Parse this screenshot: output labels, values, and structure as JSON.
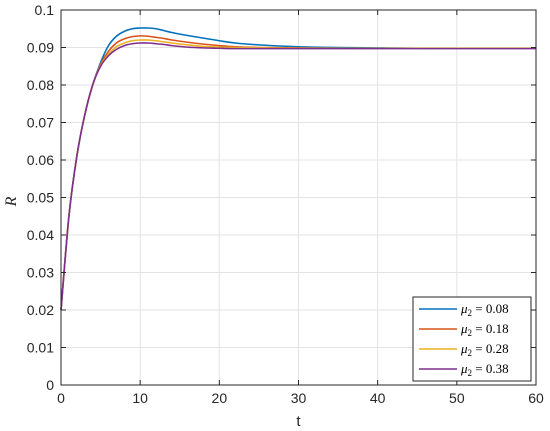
{
  "chart_data": {
    "type": "line",
    "title": "",
    "xlabel": "t",
    "ylabel": "R",
    "xlim": [
      0,
      60
    ],
    "ylim": [
      0,
      0.1
    ],
    "xticks": [
      "0",
      "10",
      "20",
      "30",
      "40",
      "50",
      "60"
    ],
    "yticks": [
      "0",
      "0.01",
      "0.02",
      "0.03",
      "0.04",
      "0.05",
      "0.06",
      "0.07",
      "0.08",
      "0.09",
      "0.1"
    ],
    "grid": true,
    "legend_position": "bottom-right",
    "x": [
      0,
      1,
      2,
      3,
      4,
      5,
      6,
      7,
      8,
      9,
      10,
      11,
      12,
      13,
      14,
      16,
      18,
      20,
      22,
      25,
      30,
      35,
      40,
      45,
      50,
      55,
      60
    ],
    "series": [
      {
        "name": "μ2 = 0.08",
        "legend_name": "μ",
        "legend_sub": "2",
        "legend_value": " = 0.08",
        "color": "#0072BD",
        "values": [
          0.02,
          0.045,
          0.061,
          0.072,
          0.08,
          0.086,
          0.0905,
          0.093,
          0.0943,
          0.095,
          0.0952,
          0.0952,
          0.095,
          0.0945,
          0.094,
          0.0932,
          0.0925,
          0.0918,
          0.0912,
          0.0907,
          0.0902,
          0.09,
          0.0899,
          0.0898,
          0.0898,
          0.0898,
          0.0898
        ]
      },
      {
        "name": "μ2 = 0.18",
        "legend_name": "μ",
        "legend_sub": "2",
        "legend_value": " = 0.18",
        "color": "#D95319",
        "values": [
          0.02,
          0.045,
          0.061,
          0.072,
          0.08,
          0.0855,
          0.089,
          0.0912,
          0.0923,
          0.0929,
          0.0931,
          0.093,
          0.0927,
          0.0924,
          0.092,
          0.0914,
          0.0909,
          0.0905,
          0.0902,
          0.09,
          0.0899,
          0.0898,
          0.0898,
          0.0898,
          0.0898,
          0.0898,
          0.0898
        ]
      },
      {
        "name": "μ2 = 0.28",
        "legend_name": "μ",
        "legend_sub": "2",
        "legend_value": " = 0.28",
        "color": "#EDB120",
        "values": [
          0.02,
          0.045,
          0.061,
          0.072,
          0.08,
          0.0852,
          0.0882,
          0.0902,
          0.0912,
          0.0918,
          0.092,
          0.092,
          0.0918,
          0.0915,
          0.0912,
          0.0907,
          0.0903,
          0.0901,
          0.09,
          0.0899,
          0.0898,
          0.0898,
          0.0898,
          0.0898,
          0.0898,
          0.0898,
          0.0898
        ]
      },
      {
        "name": "μ2 = 0.38",
        "legend_name": "μ",
        "legend_sub": "2",
        "legend_value": " = 0.38",
        "color": "#7E2F8E",
        "values": [
          0.02,
          0.045,
          0.061,
          0.072,
          0.08,
          0.085,
          0.0878,
          0.0895,
          0.0905,
          0.091,
          0.0912,
          0.0912,
          0.091,
          0.0908,
          0.0905,
          0.0901,
          0.0899,
          0.0898,
          0.0897,
          0.0897,
          0.0897,
          0.0897,
          0.0897,
          0.0897,
          0.0897,
          0.0897,
          0.0897
        ]
      }
    ]
  }
}
